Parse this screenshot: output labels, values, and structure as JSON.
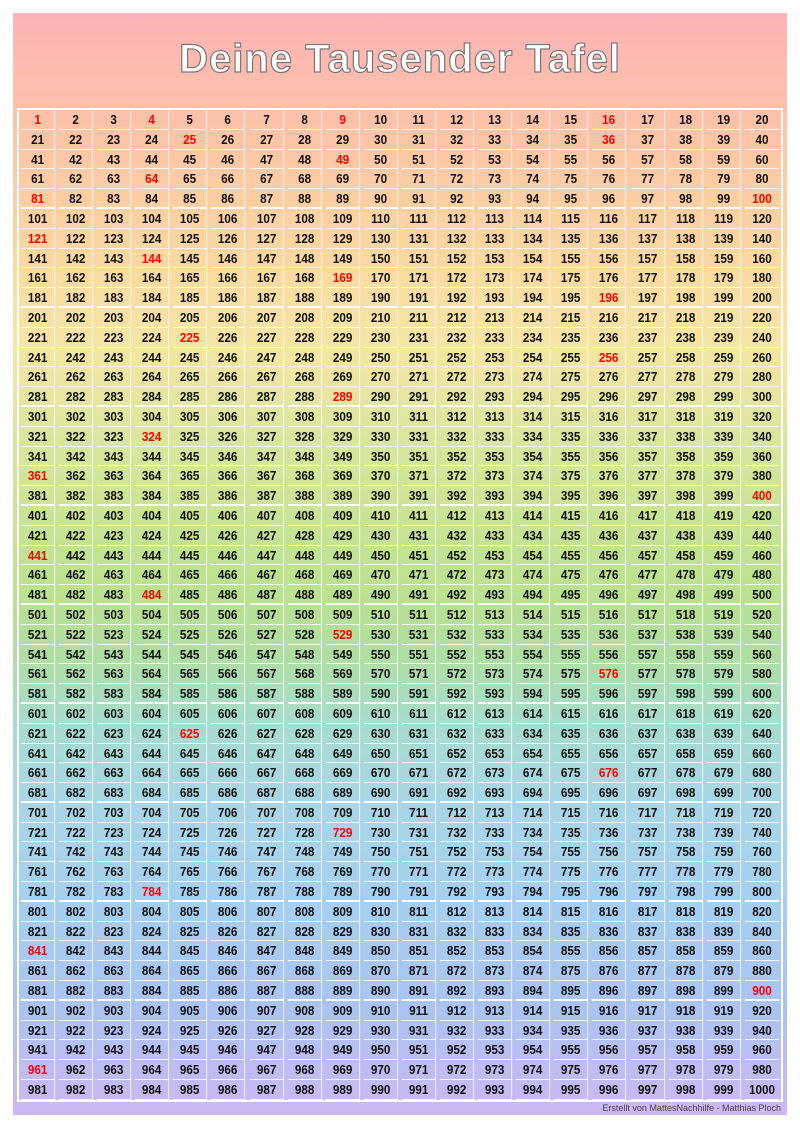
{
  "title": "Deine Tausender Tafel",
  "table": {
    "start": 1,
    "end": 1000,
    "columns": 20,
    "highlighted": [
      1,
      4,
      9,
      16,
      25,
      36,
      49,
      64,
      81,
      100,
      121,
      144,
      169,
      196,
      225,
      256,
      289,
      324,
      361,
      400,
      441,
      484,
      529,
      576,
      625,
      676,
      729,
      784,
      841,
      900,
      961
    ],
    "highlight_color": "#ff0000",
    "text_color": "#111111"
  },
  "footer": "Erstellt von MattesNachhilfe - Matthias Ploch"
}
